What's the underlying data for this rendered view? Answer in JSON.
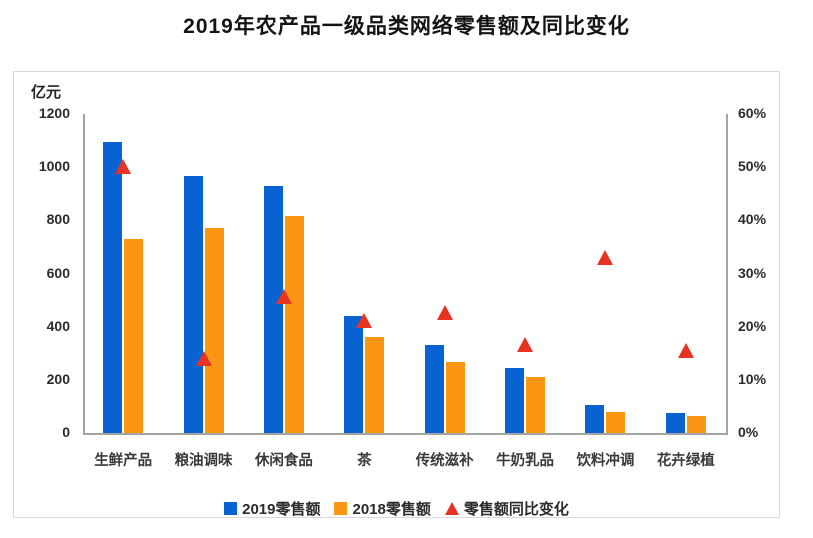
{
  "title": "2019年农产品一级品类网络零售额及同比变化",
  "chart_data": {
    "type": "bar",
    "title": "2019年农产品一级品类网络零售额及同比变化",
    "unit_label": "亿元",
    "categories": [
      "生鲜产品",
      "粮油调味",
      "休闲食品",
      "茶",
      "传统滋补",
      "牛奶乳品",
      "饮料冲调",
      "花卉绿植"
    ],
    "series": [
      {
        "name": "2019零售额",
        "color": "#0862d2",
        "values": [
          1095,
          965,
          930,
          440,
          330,
          245,
          105,
          75
        ]
      },
      {
        "name": "2018零售额",
        "color": "#fa9614",
        "values": [
          730,
          770,
          815,
          360,
          268,
          210,
          80,
          65
        ]
      }
    ],
    "marker_series": {
      "name": "零售额同比变化",
      "color": "#e73323",
      "values_pct": [
        50,
        14,
        25.5,
        21,
        22.5,
        16.5,
        33,
        15.5
      ]
    },
    "left_axis": {
      "label": "亿元",
      "min": 0,
      "max": 1200,
      "ticks": [
        1200,
        1000,
        800,
        600,
        400,
        200,
        0
      ]
    },
    "right_axis": {
      "min": 0,
      "max": 60,
      "ticks": [
        60,
        50,
        40,
        30,
        20,
        10,
        0
      ],
      "suffix": "%"
    },
    "legend_position": "bottom",
    "grid": false,
    "colors": {
      "bar_2019": "#0862d2",
      "bar_2018": "#fa9614",
      "marker": "#e73323",
      "axis_line": "#a3a3a3",
      "card_border": "#d9d9d9",
      "text": "#2b2b2b"
    }
  }
}
